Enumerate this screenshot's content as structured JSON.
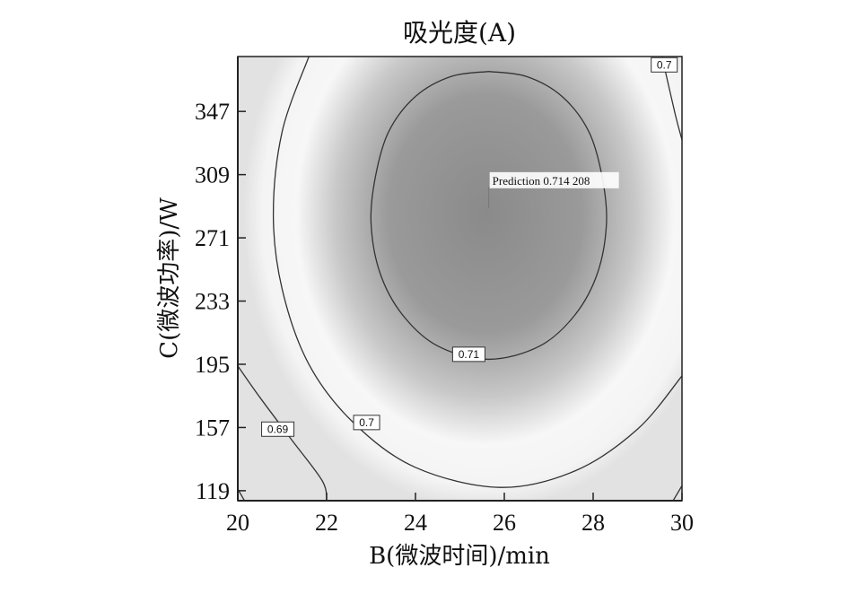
{
  "chart_data": {
    "type": "contour",
    "title": "吸光度(A)",
    "xlabel": "B(微波时间)/min",
    "ylabel": "C(微波功率)/W",
    "xlim": [
      20,
      30
    ],
    "ylim": [
      113,
      380
    ],
    "xticks": [
      20,
      22,
      24,
      26,
      28,
      30
    ],
    "yticks": [
      119,
      157,
      195,
      233,
      271,
      309,
      347
    ],
    "optimum": {
      "x": 25.65,
      "y": 290,
      "value": 0.7142
    },
    "contours": [
      {
        "level": 0.71,
        "label": "0.71",
        "path": [
          [
            25.65,
            371
          ],
          [
            26.5,
            368
          ],
          [
            27.3,
            356
          ],
          [
            27.9,
            335
          ],
          [
            28.2,
            308
          ],
          [
            28.3,
            280
          ],
          [
            28.1,
            250
          ],
          [
            27.6,
            225
          ],
          [
            26.8,
            206
          ],
          [
            25.65,
            198
          ],
          [
            24.5,
            206
          ],
          [
            23.7,
            225
          ],
          [
            23.2,
            250
          ],
          [
            23.0,
            280
          ],
          [
            23.1,
            308
          ],
          [
            23.4,
            335
          ],
          [
            24.0,
            356
          ],
          [
            24.8,
            368
          ],
          [
            25.65,
            371
          ]
        ],
        "label_at": [
          25.2,
          201
        ]
      },
      {
        "level": 0.7,
        "label": "0.7",
        "path": [
          [
            21.6,
            380
          ],
          [
            21.0,
            335
          ],
          [
            20.8,
            285
          ],
          [
            21.0,
            240
          ],
          [
            21.6,
            195
          ],
          [
            22.6,
            160
          ],
          [
            24.0,
            133
          ],
          [
            25.9,
            121
          ],
          [
            27.6,
            131
          ],
          [
            29.0,
            156
          ],
          [
            30.0,
            188
          ]
        ],
        "label_at": [
          22.9,
          160
        ]
      },
      {
        "level": 0.7,
        "label": "0.7",
        "path": [
          [
            29.55,
            380
          ],
          [
            29.85,
            345
          ],
          [
            30.0,
            330
          ]
        ],
        "label_at": [
          29.6,
          375
        ]
      },
      {
        "level": 0.7,
        "label": "0.7",
        "path": [
          [
            29.8,
            113
          ],
          [
            30.0,
            122
          ]
        ],
        "label_at": null
      },
      {
        "level": 0.69,
        "label": "0.69",
        "path": [
          [
            20.0,
            194
          ],
          [
            20.5,
            175
          ],
          [
            21.2,
            150
          ],
          [
            21.9,
            125
          ],
          [
            22.0,
            113
          ]
        ],
        "label_at": [
          20.9,
          156
        ]
      },
      {
        "level": 0.69,
        "label": "",
        "path": [
          [
            20.0,
            120
          ],
          [
            20.15,
            113
          ]
        ],
        "label_at": null
      }
    ],
    "prediction": {
      "label": "Prediction 0.714 208",
      "x": 25.65,
      "y": 290
    },
    "grid": false
  }
}
